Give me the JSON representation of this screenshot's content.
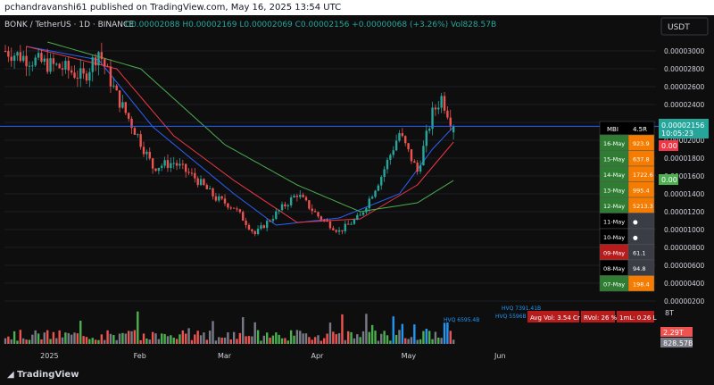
{
  "header": {
    "published": "pchandravanshi61 published on TradingView.com, May 16, 2025 13:54 UTC"
  },
  "legend": {
    "symbol": "BONK / TetherUS · 1D · BINANCE",
    "ohlc": "O0.00002088 H0.00002169 L0.00002069 C0.00002156 +0.00000068 (+3.26%) Vol828.57B"
  },
  "quote_currency": "USDT",
  "price_axis": {
    "ticks": [
      "0.00003000",
      "0.00002800",
      "0.00002600",
      "0.00002400",
      "0.00002200",
      "0.00002000",
      "0.00001800",
      "0.00001600",
      "0.00001400",
      "0.00001200",
      "0.00001000",
      "0.00000800",
      "0.00000600",
      "0.00000400",
      "0.00000200"
    ],
    "last_price": "0.00002156",
    "countdown": "10:05:23",
    "red_tag": "0.00",
    "green_tag": "0.00"
  },
  "volume_axis": {
    "top": "8T",
    "vol_ma": "2.29T",
    "vol_last": "828.57B"
  },
  "time_axis": [
    "2025",
    "Feb",
    "Mar",
    "Apr",
    "May",
    "Jun"
  ],
  "mbi_table": {
    "header_left": "MBI",
    "header_right": "4.5R",
    "rows": [
      {
        "date": "16-May",
        "value": "923.9",
        "kind": "green"
      },
      {
        "date": "15-May",
        "value": "637.8",
        "kind": "green"
      },
      {
        "date": "14-May",
        "value": "1722.6",
        "kind": "green"
      },
      {
        "date": "13-May",
        "value": "995.4",
        "kind": "green"
      },
      {
        "date": "12-May",
        "value": "5213.3",
        "kind": "green"
      },
      {
        "date": "11-May",
        "value": "●",
        "kind": "dark"
      },
      {
        "date": "10-May",
        "value": "●",
        "kind": "dark"
      },
      {
        "date": "09-May",
        "value": "61.1",
        "kind": "red"
      },
      {
        "date": "08-May",
        "value": "94.8",
        "kind": "dark"
      },
      {
        "date": "07-May",
        "value": "198.4",
        "kind": "green"
      }
    ]
  },
  "stats": {
    "avg_vol": "Avg Vol: 3.54 Cr",
    "rvol": "RVol: 26 %",
    "iml": "1mL: 0.26 L"
  },
  "volume_labels": [
    "HVQ 6595.4B",
    "HVQ 5596B",
    "HVQ 7391.41B"
  ],
  "brand": "TradingView",
  "colors": {
    "up": "#26a69a",
    "down": "#ef5350",
    "ma_fast": "#2962ff",
    "ma_mid": "#f23645",
    "ma_slow": "#4caf50",
    "vol_up": "#4caf50",
    "vol_down": "#ef5350",
    "vol_neutral": "#787b86",
    "vol_hv": "#2196f3"
  },
  "chart_data": {
    "type": "candlestick",
    "title": "BONK / TetherUS · 1D · BINANCE",
    "x_start": "2024-12-18",
    "ylim": [
      1.5e-06,
      3.12e-05
    ],
    "x_ticks": [
      {
        "label": "2025",
        "date": "2025-01-01"
      },
      {
        "label": "Feb",
        "date": "2025-02-01"
      },
      {
        "label": "Mar",
        "date": "2025-03-01"
      },
      {
        "label": "Apr",
        "date": "2025-04-01"
      },
      {
        "label": "May",
        "date": "2025-05-01"
      },
      {
        "label": "Jun",
        "date": "2025-06-01"
      }
    ],
    "close_anchors": [
      {
        "date": "2024-12-18",
        "close": 3e-05
      },
      {
        "date": "2024-12-25",
        "close": 2.92e-05
      },
      {
        "date": "2025-01-01",
        "close": 2.85e-05
      },
      {
        "date": "2025-01-07",
        "close": 2.8e-05
      },
      {
        "date": "2025-01-13",
        "close": 2.7e-05
      },
      {
        "date": "2025-01-18",
        "close": 3e-05
      },
      {
        "date": "2025-01-24",
        "close": 2.5e-05
      },
      {
        "date": "2025-01-31",
        "close": 2.05e-05
      },
      {
        "date": "2025-02-05",
        "close": 1.7e-05
      },
      {
        "date": "2025-02-12",
        "close": 1.75e-05
      },
      {
        "date": "2025-02-19",
        "close": 1.58e-05
      },
      {
        "date": "2025-02-26",
        "close": 1.35e-05
      },
      {
        "date": "2025-03-04",
        "close": 1.25e-05
      },
      {
        "date": "2025-03-11",
        "close": 9.5e-06
      },
      {
        "date": "2025-03-18",
        "close": 1.18e-05
      },
      {
        "date": "2025-03-25",
        "close": 1.4e-05
      },
      {
        "date": "2025-04-01",
        "close": 1.15e-05
      },
      {
        "date": "2025-04-08",
        "close": 9.8e-06
      },
      {
        "date": "2025-04-15",
        "close": 1.15e-05
      },
      {
        "date": "2025-04-22",
        "close": 1.6e-05
      },
      {
        "date": "2025-04-28",
        "close": 2.08e-05
      },
      {
        "date": "2025-05-04",
        "close": 1.65e-05
      },
      {
        "date": "2025-05-09",
        "close": 2.3e-05
      },
      {
        "date": "2025-05-12",
        "close": 2.48e-05
      },
      {
        "date": "2025-05-16",
        "close": 2.16e-05
      }
    ],
    "moving_averages": [
      {
        "name": "ma_fast",
        "anchors": [
          {
            "date": "2024-12-25",
            "v": 3.05e-05
          },
          {
            "date": "2025-01-18",
            "v": 2.9e-05
          },
          {
            "date": "2025-02-05",
            "v": 2.15e-05
          },
          {
            "date": "2025-03-04",
            "v": 1.4e-05
          },
          {
            "date": "2025-03-18",
            "v": 1.05e-05
          },
          {
            "date": "2025-04-08",
            "v": 1.13e-05
          },
          {
            "date": "2025-04-28",
            "v": 1.4e-05
          },
          {
            "date": "2025-05-09",
            "v": 1.9e-05
          },
          {
            "date": "2025-05-16",
            "v": 2.15e-05
          }
        ]
      },
      {
        "name": "ma_mid",
        "anchors": [
          {
            "date": "2024-12-25",
            "v": 3.05e-05
          },
          {
            "date": "2025-01-24",
            "v": 2.8e-05
          },
          {
            "date": "2025-02-12",
            "v": 2.05e-05
          },
          {
            "date": "2025-03-04",
            "v": 1.55e-05
          },
          {
            "date": "2025-03-25",
            "v": 1.08e-05
          },
          {
            "date": "2025-04-15",
            "v": 1.12e-05
          },
          {
            "date": "2025-05-04",
            "v": 1.5e-05
          },
          {
            "date": "2025-05-16",
            "v": 1.98e-05
          }
        ]
      },
      {
        "name": "ma_slow",
        "anchors": [
          {
            "date": "2025-01-01",
            "v": 3.1e-05
          },
          {
            "date": "2025-02-01",
            "v": 2.8e-05
          },
          {
            "date": "2025-03-01",
            "v": 1.95e-05
          },
          {
            "date": "2025-03-25",
            "v": 1.5e-05
          },
          {
            "date": "2025-04-15",
            "v": 1.2e-05
          },
          {
            "date": "2025-05-04",
            "v": 1.3e-05
          },
          {
            "date": "2025-05-16",
            "v": 1.55e-05
          }
        ]
      }
    ],
    "last_close": 2.156e-05,
    "volume_ylim": [
      0,
      8
    ]
  }
}
